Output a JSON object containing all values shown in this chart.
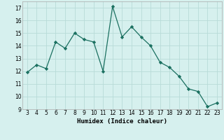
{
  "x": [
    3,
    4,
    5,
    6,
    7,
    8,
    9,
    10,
    11,
    12,
    13,
    14,
    15,
    16,
    17,
    18,
    19,
    20,
    21,
    22,
    23
  ],
  "y": [
    11.9,
    12.5,
    12.2,
    14.3,
    13.8,
    15.0,
    14.5,
    14.3,
    12.0,
    17.1,
    14.7,
    15.5,
    14.7,
    14.0,
    12.7,
    12.3,
    11.6,
    10.6,
    10.4,
    9.2,
    9.5
  ],
  "line_color": "#1a7060",
  "marker": "D",
  "marker_size": 2.2,
  "bg_color": "#d6f0ee",
  "grid_color": "#b8dbd8",
  "xlabel": "Humidex (Indice chaleur)",
  "xlim": [
    2.5,
    23.5
  ],
  "ylim": [
    9,
    17.5
  ],
  "yticks": [
    9,
    10,
    11,
    12,
    13,
    14,
    15,
    16,
    17
  ],
  "xticks": [
    3,
    4,
    5,
    6,
    7,
    8,
    9,
    10,
    11,
    12,
    13,
    14,
    15,
    16,
    17,
    18,
    19,
    20,
    21,
    22,
    23
  ],
  "tick_fontsize": 5.5,
  "xlabel_fontsize": 6.5
}
